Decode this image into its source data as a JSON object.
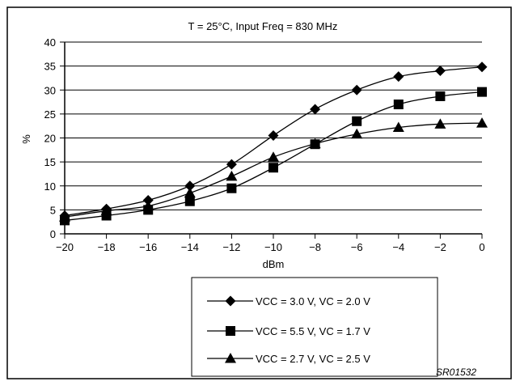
{
  "chart_data": {
    "type": "line",
    "title": "T = 25°C, Input Freq = 830 MHz",
    "xlabel": "dBm",
    "ylabel": "%",
    "x": [
      -20,
      -18,
      -16,
      -14,
      -12,
      -10,
      -8,
      -6,
      -4,
      -2,
      0
    ],
    "xlim": [
      -20,
      0
    ],
    "ylim": [
      0,
      40
    ],
    "xticks": [
      "−20",
      "−18",
      "−16",
      "−14",
      "−12",
      "−10",
      "−8",
      "−6",
      "−4",
      "−2",
      "0"
    ],
    "yticks": [
      "0",
      "5",
      "10",
      "15",
      "20",
      "25",
      "30",
      "35",
      "40"
    ],
    "grid": "horizontal",
    "legend_position": "bottom-right",
    "watermark": "SR01532",
    "series": [
      {
        "name": "VCC = 3.0 V, VC = 2.0 V",
        "marker": "diamond",
        "values": [
          3.8,
          5.2,
          7.0,
          10.0,
          14.5,
          20.5,
          26.0,
          30.0,
          32.8,
          34.0,
          34.8
        ]
      },
      {
        "name": "VCC = 5.5 V, VC = 1.7 V",
        "marker": "square",
        "values": [
          2.8,
          3.8,
          5.0,
          6.8,
          9.5,
          13.8,
          18.7,
          23.5,
          27.0,
          28.7,
          29.6
        ]
      },
      {
        "name": "VCC = 2.7 V, VC = 2.5 V",
        "marker": "triangle",
        "values": [
          3.5,
          4.8,
          5.8,
          8.5,
          12.0,
          16.0,
          18.8,
          20.8,
          22.2,
          22.9,
          23.1
        ]
      }
    ]
  }
}
